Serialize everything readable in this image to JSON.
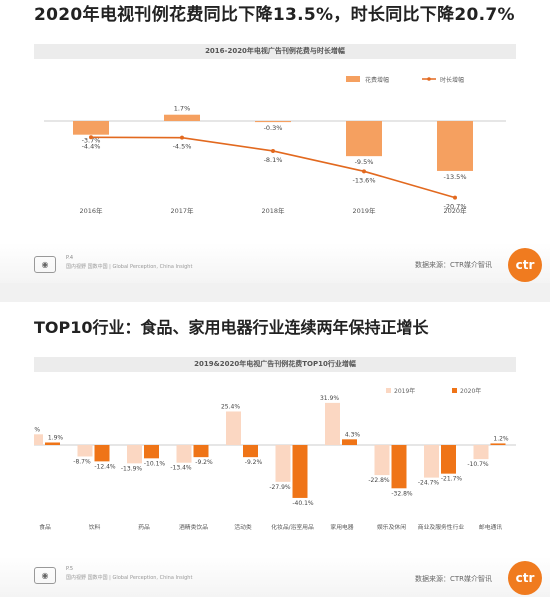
{
  "slide1": {
    "headline": "2020年电视刊例花费同比下降13.5%，时长同比下降20.7%",
    "page": "P.4",
    "tagline": "国内视野 国数中国 | Global Perception, China Insight",
    "source": "数据来源：CTR媒介智讯",
    "logo_text": "ctr"
  },
  "slide2": {
    "headline": "TOP10行业：食品、家用电器行业连续两年保持正增长",
    "page": "P.5",
    "tagline": "国内视野 国数中国 | Global Perception, China Insight",
    "source": "数据来源：CTR媒介智讯",
    "logo_text": "ctr"
  },
  "colors": {
    "spend": "#f5a060",
    "duration": "#e2691f",
    "y2019": "#fbd7c2",
    "y2020": "#ef7417"
  },
  "chart_data": [
    {
      "type": "bar",
      "title": "2016-2020年电视广告刊例花费与时长增幅",
      "categories": [
        "2016年",
        "2017年",
        "2018年",
        "2019年",
        "2020年"
      ],
      "series": [
        {
          "name": "花费增幅",
          "type": "bar",
          "values": [
            -3.7,
            1.7,
            -0.3,
            -9.5,
            -13.5
          ],
          "labels": [
            "-3.7%",
            "1.7%",
            "-0.3%",
            "-9.5%",
            "-13.5%"
          ]
        },
        {
          "name": "时长增幅",
          "type": "line",
          "values": [
            -4.4,
            -4.5,
            -8.1,
            -13.6,
            -20.7
          ],
          "labels": [
            "-4.4%",
            "-4.5%",
            "-8.1%",
            "-13.6%",
            "-20.7%"
          ]
        }
      ],
      "legend": "top-right"
    },
    {
      "type": "bar",
      "title": "2019&2020年电视广告刊例花费TOP10行业增幅",
      "categories": [
        "食品",
        "饮料",
        "药品",
        "酒精类饮品",
        "活动类",
        "化妆品/浴室用品",
        "家用电器",
        "娱乐及休闲",
        "商业及服务性行业",
        "邮电通讯"
      ],
      "series": [
        {
          "name": "2019年",
          "values": [
            8.1,
            -8.7,
            -13.9,
            -13.4,
            25.4,
            -27.9,
            31.9,
            -22.8,
            -24.7,
            -10.7
          ],
          "labels": [
            "8.1%",
            "-8.7%",
            "-13.9%",
            "-13.4%",
            "25.4%",
            "-27.9%",
            "31.9%",
            "-22.8%",
            "-24.7%",
            "-10.7%"
          ]
        },
        {
          "name": "2020年",
          "values": [
            1.9,
            -12.4,
            -10.1,
            -9.2,
            -9.2,
            -40.1,
            4.3,
            -32.8,
            -21.7,
            1.2
          ],
          "labels": [
            "1.9%",
            "-12.4%",
            "-10.1%",
            "-9.2%",
            "-9.2%",
            "-40.1%",
            "4.3%",
            "-32.8%",
            "-21.7%",
            "1.2%"
          ]
        }
      ],
      "legend": "top-right"
    }
  ]
}
